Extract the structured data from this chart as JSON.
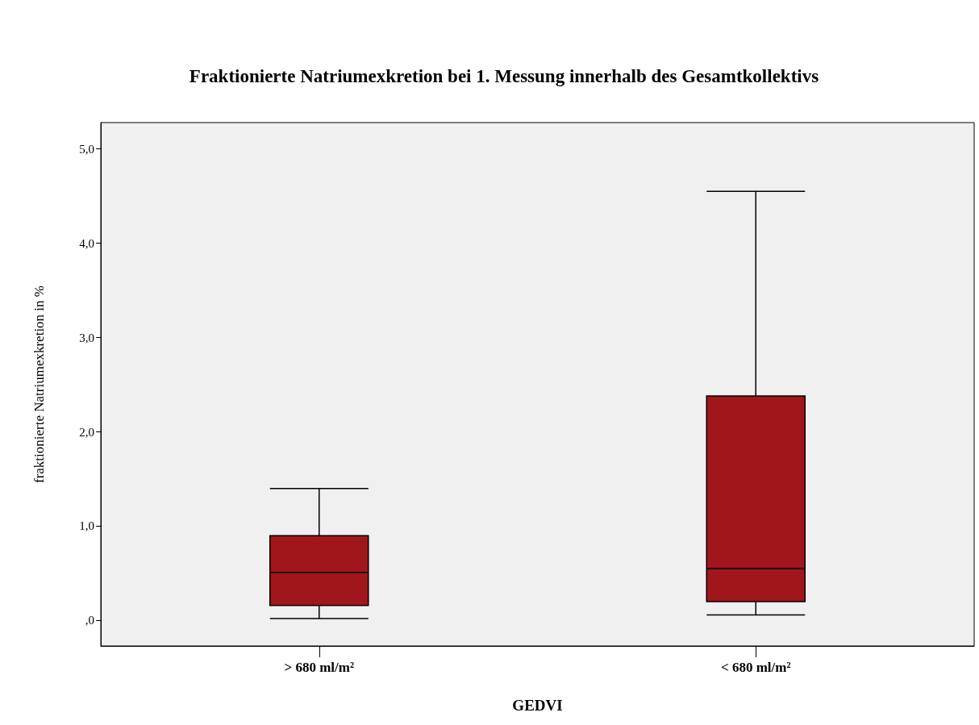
{
  "chart_data": {
    "type": "box",
    "title": "Fraktionierte Natriumexkretion bei 1. Messung innerhalb des Gesamtkollektivs",
    "xlabel": "GEDVI",
    "ylabel": "fraktionierte Natriumexkretion in %",
    "categories": [
      "> 680 ml/m²",
      "< 680 ml/m²"
    ],
    "series": [
      {
        "color": "#a0161b",
        "boxes": [
          {
            "low": 0.02,
            "q1": 0.16,
            "median": 0.51,
            "q3": 0.9,
            "high": 1.4
          },
          {
            "low": 0.06,
            "q1": 0.2,
            "median": 0.55,
            "q3": 2.38,
            "high": 4.55
          }
        ]
      }
    ],
    "ylim": [
      -0.27,
      5.28
    ],
    "yticks": [
      {
        "value": 0,
        "label": ",0"
      },
      {
        "value": 1,
        "label": "1,0"
      },
      {
        "value": 2,
        "label": "2,0"
      },
      {
        "value": 3,
        "label": "3,0"
      },
      {
        "value": 4,
        "label": "4,0"
      },
      {
        "value": 5,
        "label": "5,0"
      }
    ],
    "grid": false
  }
}
